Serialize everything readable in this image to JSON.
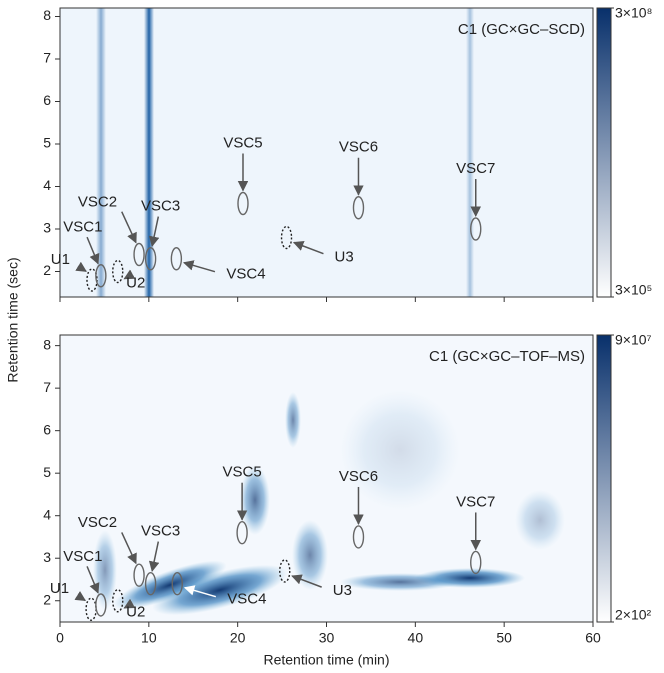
{
  "chart_data": [
    {
      "type": "heatmap",
      "title": "C1 (GC×GC–SCD)",
      "ylabel": "Retention time (sec)",
      "xlim": [
        0,
        60
      ],
      "ylim": [
        1.4,
        8.2
      ],
      "yticks": [
        2,
        3,
        4,
        5,
        6,
        7,
        8
      ],
      "colormap": [
        "#ffffff",
        "#08306b"
      ],
      "color_log": true,
      "clim": [
        300000,
        300000000
      ],
      "cticks": [
        {
          "value": 300000000,
          "label": "3×10⁸"
        },
        {
          "value": 300000,
          "label": "3×10⁵"
        }
      ],
      "peaks": [
        {
          "label": "U1",
          "x": 3.6,
          "y": 1.8,
          "dashed": true
        },
        {
          "label": "VSC1",
          "x": 4.6,
          "y": 1.9
        },
        {
          "label": "U2",
          "x": 6.5,
          "y": 2.0,
          "dashed": true
        },
        {
          "label": "VSC2",
          "x": 8.9,
          "y": 2.4
        },
        {
          "label": "VSC3",
          "x": 10.2,
          "y": 2.3
        },
        {
          "label": "VSC4",
          "x": 13.1,
          "y": 2.3
        },
        {
          "label": "VSC5",
          "x": 20.6,
          "y": 3.6
        },
        {
          "label": "U3",
          "x": 25.5,
          "y": 2.8,
          "dashed": true
        },
        {
          "label": "VSC6",
          "x": 33.6,
          "y": 3.5
        },
        {
          "label": "VSC7",
          "x": 46.8,
          "y": 3.0
        }
      ]
    },
    {
      "type": "heatmap",
      "title": "C1 (GC×GC–TOF–MS)",
      "xlabel": "Retention time (min)",
      "xlim": [
        0,
        60
      ],
      "ylim": [
        1.5,
        8.25
      ],
      "xticks": [
        0,
        10,
        20,
        30,
        40,
        50,
        60
      ],
      "yticks": [
        2,
        3,
        4,
        5,
        6,
        7,
        8
      ],
      "colormap": [
        "#ffffff",
        "#08306b"
      ],
      "color_log": true,
      "clim": [
        200,
        90000000
      ],
      "cticks": [
        {
          "value": 90000000,
          "label": "9×10⁷"
        },
        {
          "value": 200,
          "label": "2×10²"
        }
      ],
      "peaks": [
        {
          "label": "U1",
          "x": 3.5,
          "y": 1.8,
          "dashed": true
        },
        {
          "label": "VSC1",
          "x": 4.6,
          "y": 1.9
        },
        {
          "label": "U2",
          "x": 6.5,
          "y": 2.0,
          "dashed": true
        },
        {
          "label": "VSC2",
          "x": 8.9,
          "y": 2.6
        },
        {
          "label": "VSC3",
          "x": 10.2,
          "y": 2.4
        },
        {
          "label": "VSC4",
          "x": 13.2,
          "y": 2.4
        },
        {
          "label": "VSC5",
          "x": 20.5,
          "y": 3.6
        },
        {
          "label": "U3",
          "x": 25.3,
          "y": 2.7,
          "dashed": true
        },
        {
          "label": "VSC6",
          "x": 33.6,
          "y": 3.5
        },
        {
          "label": "VSC7",
          "x": 46.8,
          "y": 2.9
        }
      ]
    }
  ]
}
